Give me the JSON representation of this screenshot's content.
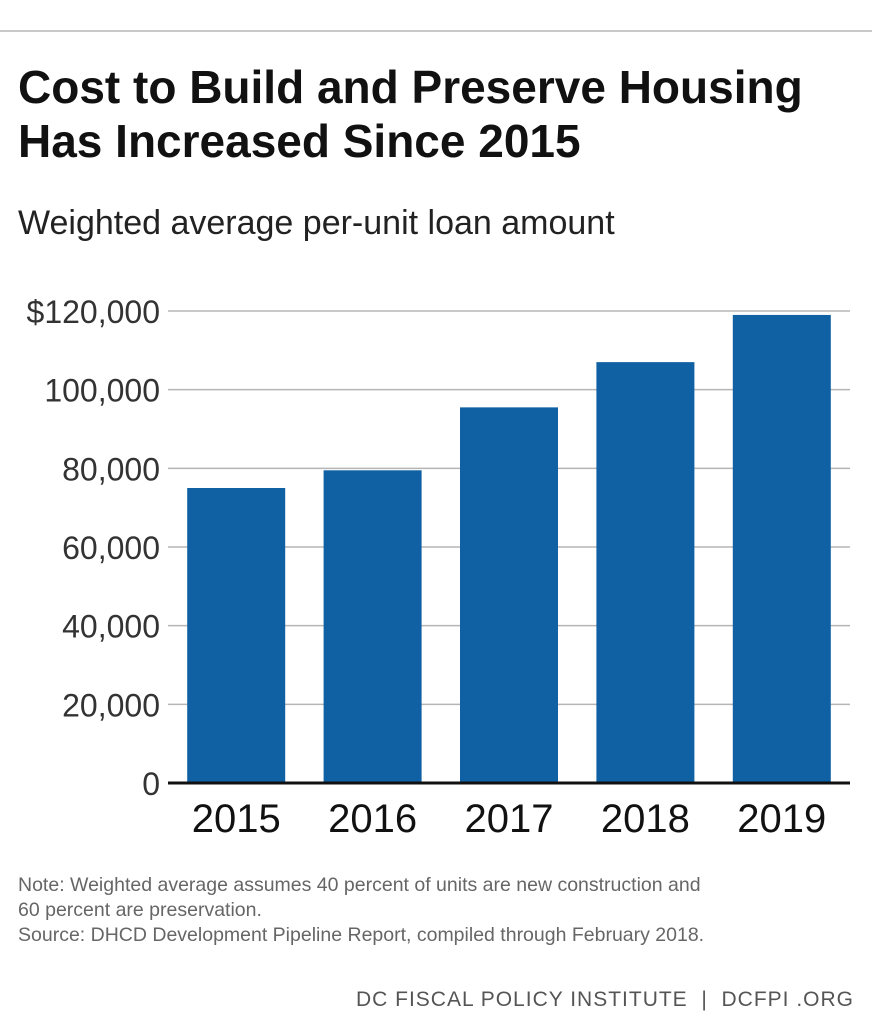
{
  "header": {
    "title_line1": "Cost to Build and Preserve Housing",
    "title_line2": "Has Increased Since 2015",
    "subtitle": "Weighted average per-unit loan amount"
  },
  "chart_data": {
    "type": "bar",
    "title": "Cost to Build and Preserve Housing Has Increased Since 2015",
    "subtitle": "Weighted average per-unit loan amount",
    "categories": [
      "2015",
      "2016",
      "2017",
      "2018",
      "2019"
    ],
    "values": [
      75000,
      79500,
      95500,
      107000,
      119000
    ],
    "ylim": [
      0,
      120000
    ],
    "yticks": [
      0,
      20000,
      40000,
      60000,
      80000,
      100000,
      120000
    ],
    "ytick_labels": [
      "0",
      "20,000",
      "40,000",
      "60,000",
      "80,000",
      "100,000",
      "$120,000"
    ],
    "xlabel": "",
    "ylabel": "",
    "grid": true,
    "bar_color": "#1060a4"
  },
  "notes": {
    "line1": "Note: Weighted average assumes 40 percent of units are new construction and",
    "line2": "60 percent are preservation.",
    "line3": "Source: DHCD Development Pipeline Report, compiled through February 2018."
  },
  "footer": {
    "credit": "DC FISCAL POLICY INSTITUTE  |  DCFPI .ORG"
  }
}
